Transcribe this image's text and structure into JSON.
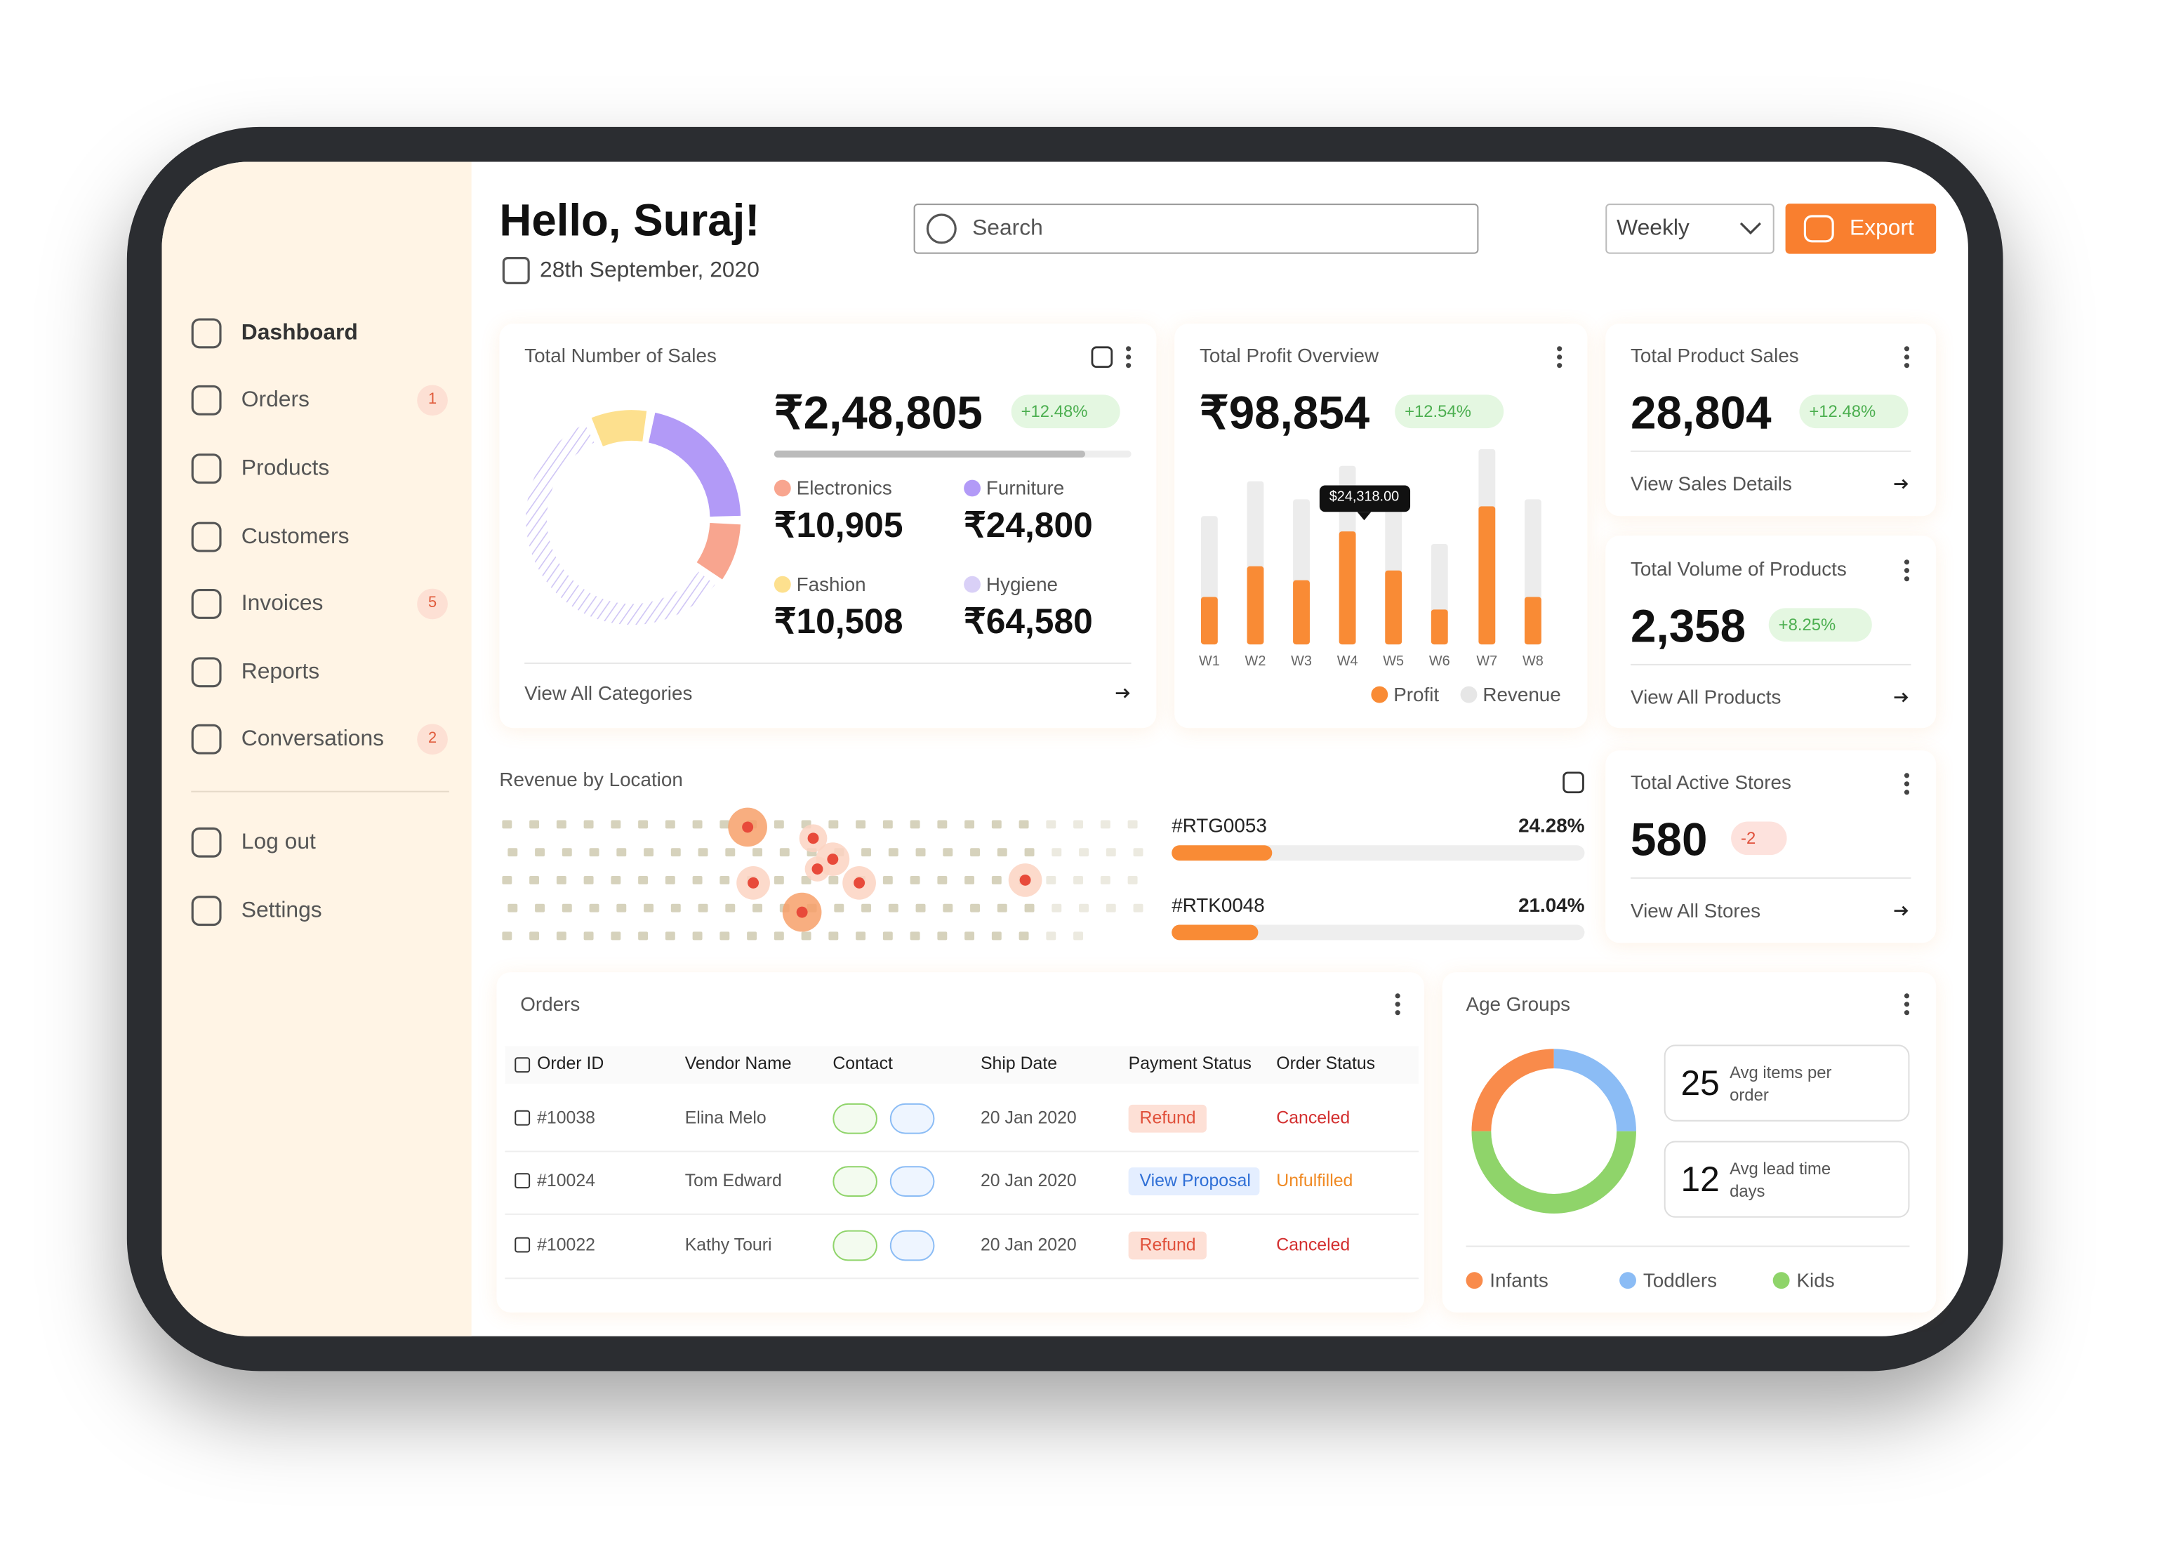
{
  "header": {
    "greeting": "Hello, Suraj!",
    "date": "28th September, 2020",
    "search_placeholder": "Search",
    "period": "Weekly",
    "export": "Export"
  },
  "sidebar": {
    "items": [
      {
        "label": "Dashboard"
      },
      {
        "label": "Orders",
        "badge": "1"
      },
      {
        "label": "Products"
      },
      {
        "label": "Customers"
      },
      {
        "label": "Invoices",
        "badge": "5"
      },
      {
        "label": "Reports"
      },
      {
        "label": "Conversations",
        "badge": "2"
      }
    ],
    "footer": [
      {
        "label": "Log out"
      },
      {
        "label": "Settings"
      }
    ]
  },
  "sales": {
    "title": "Total Number of Sales",
    "total": "₹2,48,805",
    "change": "+12.48%",
    "link": "View All Categories",
    "chart_data": {
      "type": "donut",
      "categories": [
        "Electronics",
        "Furniture",
        "Fashion",
        "Hygiene"
      ],
      "values": [
        10905,
        24800,
        10508,
        64580
      ],
      "value_labels": [
        "₹10,905",
        "₹24,800",
        "₹10,508",
        "₹64,580"
      ],
      "colors": [
        "#f8a58f",
        "#b29af7",
        "#fde08e",
        "#d9d0f7"
      ]
    }
  },
  "profit": {
    "title": "Total Profit Overview",
    "total": "₹98,854",
    "change": "+12.54%",
    "tooltip": "$24,318.00",
    "chart_data": {
      "type": "bar",
      "categories": [
        "W1",
        "W2",
        "W3",
        "W4",
        "W5",
        "W6",
        "W7",
        "W8"
      ],
      "series": [
        {
          "name": "Profit",
          "color": "#f98b35",
          "values": [
            34,
            56,
            46,
            81,
            53,
            25,
            99,
            34
          ]
        },
        {
          "name": "Revenue",
          "color": "#ececec",
          "values": [
            92,
            117,
            104,
            128,
            112,
            72,
            140,
            104
          ]
        }
      ]
    }
  },
  "stats": [
    {
      "title": "Total Product Sales",
      "value": "28,804",
      "change": "+12.48%",
      "link": "View Sales Details",
      "trend": "up"
    },
    {
      "title": "Total Volume of Products",
      "value": "2,358",
      "change": "+8.25%",
      "link": "View All Products",
      "trend": "up"
    },
    {
      "title": "Total Active Stores",
      "value": "580",
      "change": "-2",
      "link": "View All Stores",
      "trend": "down"
    }
  ],
  "location": {
    "title": "Revenue by Location",
    "chart_data": {
      "type": "progress",
      "categories": [
        "#RTG0053",
        "#RTK0048"
      ],
      "values": [
        24.28,
        21.04
      ],
      "value_labels": [
        "24.28%",
        "21.04%"
      ],
      "color": "#f98b35"
    }
  },
  "orders": {
    "title": "Orders",
    "columns": [
      "Order ID",
      "Vendor Name",
      "Contact",
      "Ship Date",
      "Payment Status",
      "Order Status"
    ],
    "rows": [
      [
        "#10038",
        "Elina Melo",
        "",
        "20 Jan 2020",
        "Refund",
        "Canceled"
      ],
      [
        "#10024",
        "Tom Edward",
        "",
        "20 Jan 2020",
        "View Proposal",
        "Unfulfilled"
      ],
      [
        "#10022",
        "Kathy Touri",
        "",
        "20 Jan 2020",
        "Refund",
        "Canceled"
      ]
    ]
  },
  "age": {
    "title": "Age Groups",
    "cards": [
      {
        "value": "25",
        "label": "Avg items per order"
      },
      {
        "value": "12",
        "label": "Avg lead time days"
      }
    ],
    "chart_data": {
      "type": "donut",
      "categories": [
        "Infants",
        "Toddlers",
        "Kids"
      ],
      "values": [
        25,
        25,
        50
      ],
      "colors": [
        "#f98b4b",
        "#8bbcf5",
        "#8fd46a"
      ]
    }
  }
}
